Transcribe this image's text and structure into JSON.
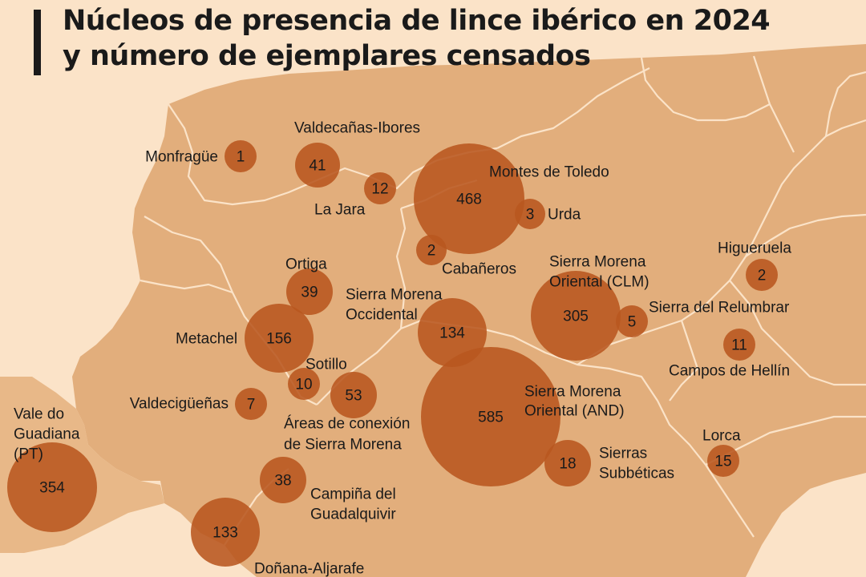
{
  "title": {
    "line1": "Núcleos de presencia de lince ibérico en 2024",
    "line2": "y número de ejemplares censados"
  },
  "colors": {
    "background": "#fbe3c8",
    "land": "#e2ae7c",
    "borders": "#fbe3c8",
    "bubble": "#b8561f",
    "text": "#1a1a1a"
  },
  "nuclei": [
    {
      "name": "Monfragüe",
      "count": "1"
    },
    {
      "name": "Valdecañas-Ibores",
      "count": "41"
    },
    {
      "name": "La Jara",
      "count": "12"
    },
    {
      "name": "Montes de Toledo",
      "count": "468"
    },
    {
      "name": "Urda",
      "count": "3"
    },
    {
      "name": "Cabañeros",
      "count": "2"
    },
    {
      "name": "Higueruela",
      "count": "2"
    },
    {
      "name": "Ortiga",
      "count": "39"
    },
    {
      "name": "Sierra Morena Occidental",
      "count": "134"
    },
    {
      "name": "Sierra Morena Oriental (CLM)",
      "count": "305"
    },
    {
      "name": "Sierra del Relumbrar",
      "count": "5"
    },
    {
      "name": "Metachel",
      "count": "156"
    },
    {
      "name": "Campos de Hellín",
      "count": "11"
    },
    {
      "name": "Sotillo",
      "count": "10"
    },
    {
      "name": "Áreas de conexión de Sierra Morena",
      "count": "53"
    },
    {
      "name": "Valdecigüeñas",
      "count": "7"
    },
    {
      "name": "Sierra Morena Oriental (AND)",
      "count": "585"
    },
    {
      "name": "Vale do Guadiana (PT)",
      "count": "354"
    },
    {
      "name": "Sierras Subbéticas",
      "count": "18"
    },
    {
      "name": "Lorca",
      "count": "15"
    },
    {
      "name": "Campiña del Guadalquivir",
      "count": "38"
    },
    {
      "name": "Doñana-Aljarafe",
      "count": "133"
    }
  ],
  "labels": {
    "monfrague": "Monfragüe",
    "valdecanas": "Valdecañas-Ibores",
    "lajara": "La Jara",
    "montes": "Montes de Toledo",
    "urda": "Urda",
    "cabaneros": "Cabañeros",
    "higueruela": "Higueruela",
    "ortiga": "Ortiga",
    "smocc_1": "Sierra Morena",
    "smocc_2": "Occidental",
    "smclm_1": "Sierra Morena",
    "smclm_2": "Oriental (CLM)",
    "relumbrar": "Sierra del Relumbrar",
    "metachel": "Metachel",
    "hellin": "Campos de Hellín",
    "sotillo": "Sotillo",
    "areas_1": "Áreas de conexión",
    "areas_2": "de Sierra Morena",
    "valdecig": "Valdecigüeñas",
    "smand_1": "Sierra Morena",
    "smand_2": "Oriental (AND)",
    "vale_1": "Vale do",
    "vale_2": "Guadiana",
    "vale_3": "(PT)",
    "subbeticas_1": "Sierras",
    "subbeticas_2": "Subbéticas",
    "lorca": "Lorca",
    "campina_1": "Campiña del",
    "campina_2": "Guadalquivir",
    "donana": "Doñana-Aljarafe"
  }
}
